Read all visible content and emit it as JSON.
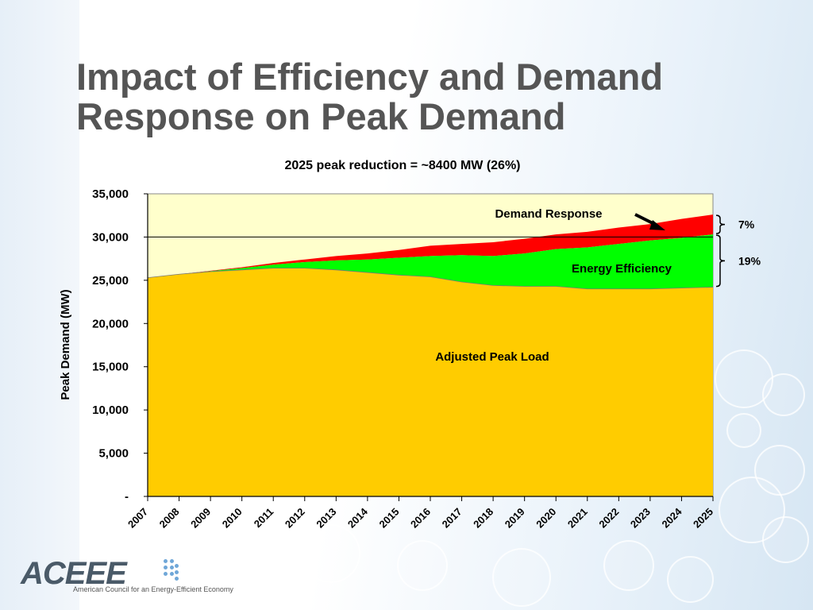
{
  "slide": {
    "title_line1": "Impact of Efficiency and Demand",
    "title_line2": "Response on Peak Demand"
  },
  "chart_data": {
    "type": "area",
    "title": "2025 peak reduction = ~8400 MW (26%)",
    "ylabel": "Peak Demand (MW)",
    "xlabel": "",
    "x": [
      "2007",
      "2008",
      "2009",
      "2010",
      "2011",
      "2012",
      "2013",
      "2014",
      "2015",
      "2016",
      "2017",
      "2018",
      "2019",
      "2020",
      "2021",
      "2022",
      "2023",
      "2024",
      "2025"
    ],
    "ylim": [
      0,
      35000
    ],
    "ytick_values": [
      0,
      5000,
      10000,
      15000,
      20000,
      25000,
      30000,
      35000
    ],
    "ytick_labels": [
      "-",
      "5,000",
      "10,000",
      "15,000",
      "20,000",
      "25,000",
      "30,000",
      "35,000"
    ],
    "stacked": true,
    "series": [
      {
        "name": "Adjusted Peak Load",
        "color": "#ffcc00",
        "values": [
          25300,
          25700,
          26000,
          26200,
          26400,
          26400,
          26200,
          25900,
          25600,
          25400,
          24800,
          24400,
          24300,
          24300,
          24000,
          24000,
          24000,
          24100,
          24200
        ]
      },
      {
        "name": "Energy Efficiency",
        "color": "#00ff00",
        "values": [
          0,
          0,
          50,
          200,
          400,
          700,
          1100,
          1500,
          2000,
          2400,
          3100,
          3400,
          3800,
          4300,
          4800,
          5200,
          5600,
          5800,
          6100
        ]
      },
      {
        "name": "Demand Response",
        "color": "#ff0000",
        "values": [
          0,
          0,
          50,
          100,
          200,
          300,
          500,
          700,
          900,
          1200,
          1300,
          1600,
          1700,
          1700,
          1800,
          1900,
          1900,
          2200,
          2300
        ]
      }
    ],
    "background_color": "#ffffcc",
    "gridlines": [
      30000
    ],
    "annotations": [
      {
        "text": "Adjusted Peak Load"
      },
      {
        "text": "Energy Efficiency"
      },
      {
        "text": "Demand Response"
      },
      {
        "text": "7%"
      },
      {
        "text": "19%"
      }
    ]
  },
  "logo": {
    "name": "ACEEE",
    "subtitle": "American Council for an Energy-Efficient Economy"
  }
}
